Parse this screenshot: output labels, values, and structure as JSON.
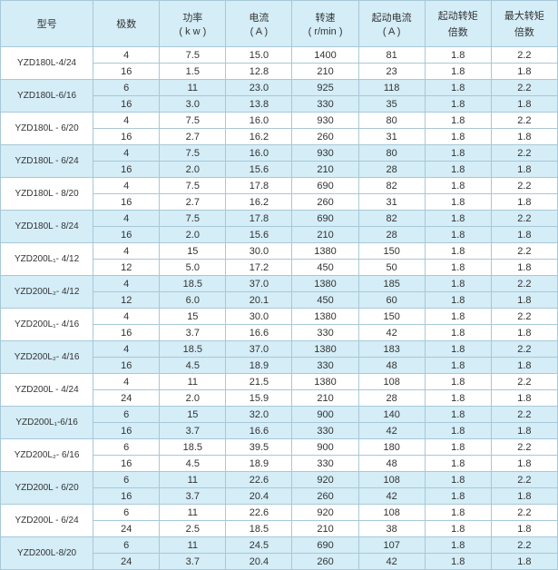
{
  "colors": {
    "header_bg": "#d4edf7",
    "shaded_bg": "#d4edf7",
    "border": "#a8c8d8",
    "text": "#333333"
  },
  "fontsize": {
    "header": 11,
    "cell": 11,
    "model": 10
  },
  "headers": [
    {
      "main": "型号",
      "sub": ""
    },
    {
      "main": "极数",
      "sub": ""
    },
    {
      "main": "功率",
      "sub": "( k w )"
    },
    {
      "main": "电流",
      "sub": "( A )"
    },
    {
      "main": "转速",
      "sub": "( r/min )"
    },
    {
      "main": "起动电流",
      "sub": "( A )"
    },
    {
      "main": "起动转矩",
      "sub": "倍数"
    },
    {
      "main": "最大转矩",
      "sub": "倍数"
    }
  ],
  "groups": [
    {
      "model": "YZD180L-4/24",
      "shaded": false,
      "rows": [
        [
          "4",
          "7.5",
          "15.0",
          "1400",
          "81",
          "1.8",
          "2.2"
        ],
        [
          "16",
          "1.5",
          "12.8",
          "210",
          "23",
          "1.8",
          "1.8"
        ]
      ]
    },
    {
      "model": "YZD180L-6/16",
      "shaded": true,
      "rows": [
        [
          "6",
          "11",
          "23.0",
          "925",
          "118",
          "1.8",
          "2.2"
        ],
        [
          "16",
          "3.0",
          "13.8",
          "330",
          "35",
          "1.8",
          "1.8"
        ]
      ]
    },
    {
      "model": "YZD180L - 6/20",
      "shaded": false,
      "rows": [
        [
          "4",
          "7.5",
          "16.0",
          "930",
          "80",
          "1.8",
          "2.2"
        ],
        [
          "16",
          "2.7",
          "16.2",
          "260",
          "31",
          "1.8",
          "1.8"
        ]
      ]
    },
    {
      "model": "YZD180L - 6/24",
      "shaded": true,
      "rows": [
        [
          "4",
          "7.5",
          "16.0",
          "930",
          "80",
          "1.8",
          "2.2"
        ],
        [
          "16",
          "2.0",
          "15.6",
          "210",
          "28",
          "1.8",
          "1.8"
        ]
      ]
    },
    {
      "model": "YZD180L - 8/20",
      "shaded": false,
      "rows": [
        [
          "4",
          "7.5",
          "17.8",
          "690",
          "82",
          "1.8",
          "2.2"
        ],
        [
          "16",
          "2.7",
          "16.2",
          "260",
          "31",
          "1.8",
          "1.8"
        ]
      ]
    },
    {
      "model": "YZD180L - 8/24",
      "shaded": true,
      "rows": [
        [
          "4",
          "7.5",
          "17.8",
          "690",
          "82",
          "1.8",
          "2.2"
        ],
        [
          "16",
          "2.0",
          "15.6",
          "210",
          "28",
          "1.8",
          "1.8"
        ]
      ]
    },
    {
      "model": "YZD200L₁- 4/12",
      "shaded": false,
      "rows": [
        [
          "4",
          "15",
          "30.0",
          "1380",
          "150",
          "1.8",
          "2.2"
        ],
        [
          "12",
          "5.0",
          "17.2",
          "450",
          "50",
          "1.8",
          "1.8"
        ]
      ]
    },
    {
      "model": "YZD200L₂- 4/12",
      "shaded": true,
      "rows": [
        [
          "4",
          "18.5",
          "37.0",
          "1380",
          "185",
          "1.8",
          "2.2"
        ],
        [
          "12",
          "6.0",
          "20.1",
          "450",
          "60",
          "1.8",
          "1.8"
        ]
      ]
    },
    {
      "model": "YZD200L₁- 4/16",
      "shaded": false,
      "rows": [
        [
          "4",
          "15",
          "30.0",
          "1380",
          "150",
          "1.8",
          "2.2"
        ],
        [
          "16",
          "3.7",
          "16.6",
          "330",
          "42",
          "1.8",
          "1.8"
        ]
      ]
    },
    {
      "model": "YZD200L₂- 4/16",
      "shaded": true,
      "rows": [
        [
          "4",
          "18.5",
          "37.0",
          "1380",
          "183",
          "1.8",
          "2.2"
        ],
        [
          "16",
          "4.5",
          "18.9",
          "330",
          "48",
          "1.8",
          "1.8"
        ]
      ]
    },
    {
      "model": "YZD200L - 4/24",
      "shaded": false,
      "rows": [
        [
          "4",
          "11",
          "21.5",
          "1380",
          "108",
          "1.8",
          "2.2"
        ],
        [
          "24",
          "2.0",
          "15.9",
          "210",
          "28",
          "1.8",
          "1.8"
        ]
      ]
    },
    {
      "model": "YZD200L₁-6/16",
      "shaded": true,
      "rows": [
        [
          "6",
          "15",
          "32.0",
          "900",
          "140",
          "1.8",
          "2.2"
        ],
        [
          "16",
          "3.7",
          "16.6",
          "330",
          "42",
          "1.8",
          "1.8"
        ]
      ]
    },
    {
      "model": "YZD200L₂- 6/16",
      "shaded": false,
      "rows": [
        [
          "6",
          "18.5",
          "39.5",
          "900",
          "180",
          "1.8",
          "2.2"
        ],
        [
          "16",
          "4.5",
          "18.9",
          "330",
          "48",
          "1.8",
          "1.8"
        ]
      ]
    },
    {
      "model": "YZD200L - 6/20",
      "shaded": true,
      "rows": [
        [
          "6",
          "11",
          "22.6",
          "920",
          "108",
          "1.8",
          "2.2"
        ],
        [
          "16",
          "3.7",
          "20.4",
          "260",
          "42",
          "1.8",
          "1.8"
        ]
      ]
    },
    {
      "model": "YZD200L - 6/24",
      "shaded": false,
      "rows": [
        [
          "6",
          "11",
          "22.6",
          "920",
          "108",
          "1.8",
          "2.2"
        ],
        [
          "24",
          "2.5",
          "18.5",
          "210",
          "38",
          "1.8",
          "1.8"
        ]
      ]
    },
    {
      "model": "YZD200L-8/20",
      "shaded": true,
      "rows": [
        [
          "6",
          "11",
          "24.5",
          "690",
          "107",
          "1.8",
          "2.2"
        ],
        [
          "24",
          "3.7",
          "20.4",
          "260",
          "42",
          "1.8",
          "1.8"
        ]
      ]
    }
  ]
}
